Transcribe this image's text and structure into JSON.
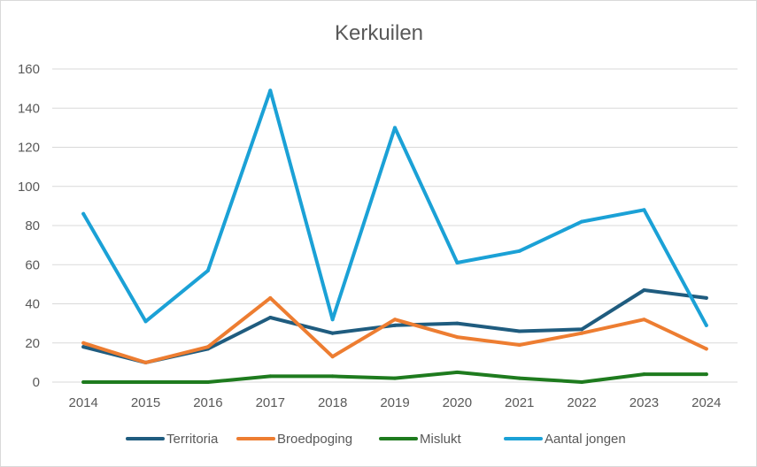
{
  "chart_data": {
    "type": "line",
    "title": "Kerkuilen",
    "xlabel": "",
    "ylabel": "",
    "categories": [
      "2014",
      "2015",
      "2016",
      "2017",
      "2018",
      "2019",
      "2020",
      "2021",
      "2022",
      "2023",
      "2024"
    ],
    "ylim": [
      0,
      160
    ],
    "yticks": [
      0,
      20,
      40,
      60,
      80,
      100,
      120,
      140,
      160
    ],
    "grid": true,
    "legend_position": "bottom",
    "series": [
      {
        "name": "Territoria",
        "color": "#1f5c7f",
        "values": [
          18,
          10,
          17,
          33,
          25,
          29,
          30,
          26,
          27,
          47,
          43
        ]
      },
      {
        "name": "Broedpoging",
        "color": "#ed7d31",
        "values": [
          20,
          10,
          18,
          43,
          13,
          32,
          23,
          19,
          25,
          32,
          17
        ]
      },
      {
        "name": "Mislukt",
        "color": "#1e7b1e",
        "values": [
          0,
          0,
          0,
          3,
          3,
          2,
          5,
          2,
          0,
          4,
          4
        ]
      },
      {
        "name": "Aantal jongen",
        "color": "#1ba1d6",
        "values": [
          86,
          31,
          57,
          149,
          32,
          130,
          61,
          67,
          82,
          88,
          29
        ]
      }
    ]
  }
}
